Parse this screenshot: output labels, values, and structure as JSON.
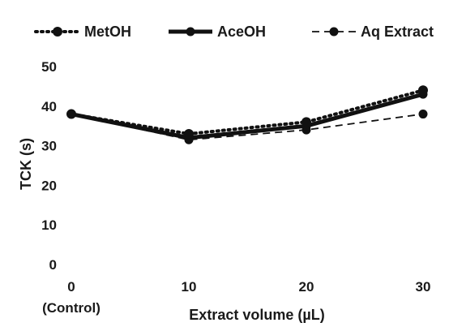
{
  "chart_data": {
    "type": "line",
    "title": "",
    "xlabel": "Extract volume (µL)",
    "ylabel": "TCK (s)",
    "x_categories": [
      "0",
      "10",
      "20",
      "30"
    ],
    "x_sublabels": [
      "(Control)",
      "",
      "",
      ""
    ],
    "y_ticks": [
      "0",
      "10",
      "20",
      "30",
      "40",
      "50"
    ],
    "ylim": [
      0,
      50
    ],
    "grid": false,
    "legend_position": "top",
    "series": [
      {
        "name": "MetOH",
        "values": [
          38,
          33,
          36,
          44
        ],
        "line_style": "dotted",
        "color": "#111111"
      },
      {
        "name": "AceOH",
        "values": [
          38,
          32,
          35,
          43
        ],
        "line_style": "solid",
        "color": "#111111"
      },
      {
        "name": "Aq Extract",
        "values": [
          38,
          31.5,
          34,
          38
        ],
        "line_style": "dashed",
        "color": "#111111"
      }
    ]
  }
}
